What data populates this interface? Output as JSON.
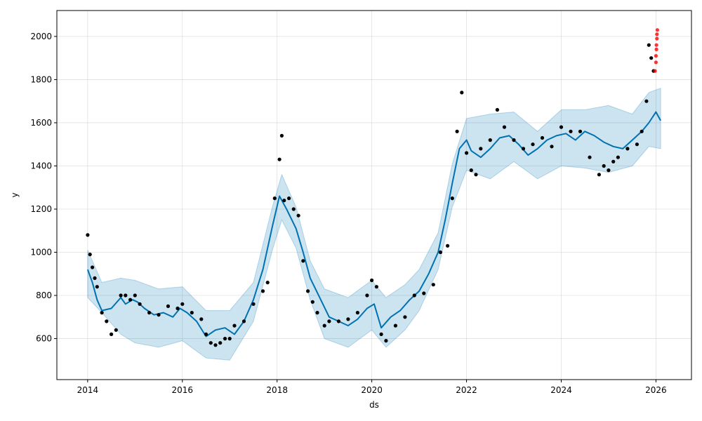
{
  "chart_data": {
    "type": "line",
    "title": "",
    "xlabel": "ds",
    "ylabel": "y",
    "xlim": [
      2013.35,
      2026.75
    ],
    "ylim": [
      410,
      2120
    ],
    "x_ticks": [
      2014,
      2016,
      2018,
      2020,
      2022,
      2024,
      2026
    ],
    "x_tick_labels": [
      "2014",
      "2016",
      "2018",
      "2020",
      "2022",
      "2024",
      "2026"
    ],
    "y_ticks": [
      600,
      800,
      1000,
      1200,
      1400,
      1600,
      1800,
      2000
    ],
    "y_tick_labels": [
      "600",
      "800",
      "1000",
      "1200",
      "1400",
      "1600",
      "1800",
      "2000"
    ],
    "grid": true,
    "colors": {
      "forecast_line": "#0072b2",
      "uncertainty_band": "#0072b2",
      "observed_points": "#000000",
      "holdout_points": "#ff0000"
    },
    "series": [
      {
        "kind": "forecast",
        "x": [
          2014.0,
          2014.1,
          2014.2,
          2014.3,
          2014.5,
          2014.7,
          2014.8,
          2014.95,
          2015.05,
          2015.2,
          2015.4,
          2015.6,
          2015.8,
          2015.95,
          2016.1,
          2016.3,
          2016.5,
          2016.7,
          2016.9,
          2017.1,
          2017.3,
          2017.5,
          2017.7,
          2017.9,
          2018.05,
          2018.2,
          2018.4,
          2018.55,
          2018.7,
          2018.9,
          2019.1,
          2019.3,
          2019.5,
          2019.7,
          2019.9,
          2020.05,
          2020.2,
          2020.4,
          2020.6,
          2020.8,
          2021.0,
          2021.2,
          2021.4,
          2021.55,
          2021.7,
          2021.85,
          2022.0,
          2022.1,
          2022.3,
          2022.5,
          2022.7,
          2022.9,
          2023.1,
          2023.3,
          2023.5,
          2023.7,
          2023.9,
          2024.1,
          2024.3,
          2024.5,
          2024.7,
          2024.9,
          2025.1,
          2025.3,
          2025.5,
          2025.7,
          2025.85,
          2026.0,
          2026.1
        ],
        "y": [
          920,
          860,
          780,
          730,
          740,
          790,
          760,
          780,
          770,
          740,
          710,
          720,
          700,
          740,
          720,
          680,
          610,
          640,
          650,
          620,
          680,
          780,
          920,
          1120,
          1260,
          1200,
          1110,
          1000,
          880,
          790,
          700,
          680,
          660,
          690,
          740,
          760,
          650,
          700,
          730,
          780,
          820,
          900,
          1000,
          1150,
          1320,
          1480,
          1520,
          1470,
          1440,
          1480,
          1530,
          1540,
          1500,
          1450,
          1480,
          1520,
          1540,
          1550,
          1520,
          1560,
          1540,
          1510,
          1490,
          1480,
          1520,
          1560,
          1600,
          1650,
          1610
        ]
      },
      {
        "kind": "uncertainty_upper",
        "x": [
          2014.0,
          2014.3,
          2014.7,
          2015.0,
          2015.5,
          2016.0,
          2016.5,
          2017.0,
          2017.5,
          2017.9,
          2018.1,
          2018.4,
          2018.7,
          2019.0,
          2019.5,
          2020.0,
          2020.3,
          2020.7,
          2021.0,
          2021.4,
          2021.7,
          2022.0,
          2022.5,
          2023.0,
          2023.5,
          2024.0,
          2024.5,
          2025.0,
          2025.5,
          2025.85,
          2026.1
        ],
        "y": [
          1010,
          860,
          880,
          870,
          830,
          840,
          730,
          730,
          860,
          1210,
          1360,
          1210,
          960,
          830,
          790,
          870,
          790,
          850,
          920,
          1090,
          1410,
          1620,
          1640,
          1650,
          1560,
          1660,
          1660,
          1680,
          1640,
          1740,
          1760
        ]
      },
      {
        "kind": "uncertainty_lower",
        "x": [
          2014.0,
          2014.3,
          2014.7,
          2015.0,
          2015.5,
          2016.0,
          2016.5,
          2017.0,
          2017.5,
          2017.9,
          2018.1,
          2018.4,
          2018.7,
          2019.0,
          2019.5,
          2020.0,
          2020.3,
          2020.7,
          2021.0,
          2021.4,
          2021.7,
          2022.0,
          2022.5,
          2023.0,
          2023.5,
          2024.0,
          2024.5,
          2025.0,
          2025.5,
          2025.85,
          2026.1
        ],
        "y": [
          790,
          720,
          620,
          580,
          560,
          590,
          510,
          500,
          680,
          1010,
          1150,
          1020,
          780,
          600,
          560,
          640,
          560,
          640,
          730,
          920,
          1210,
          1380,
          1340,
          1420,
          1340,
          1400,
          1390,
          1370,
          1400,
          1490,
          1480
        ]
      },
      {
        "kind": "observed",
        "x": [
          2014.0,
          2014.05,
          2014.1,
          2014.15,
          2014.2,
          2014.3,
          2014.4,
          2014.5,
          2014.6,
          2014.7,
          2014.8,
          2014.9,
          2015.0,
          2015.1,
          2015.3,
          2015.5,
          2015.7,
          2015.9,
          2016.0,
          2016.2,
          2016.4,
          2016.5,
          2016.6,
          2016.7,
          2016.8,
          2016.9,
          2017.0,
          2017.1,
          2017.3,
          2017.5,
          2017.7,
          2017.8,
          2017.95,
          2018.05,
          2018.1,
          2018.15,
          2018.25,
          2018.35,
          2018.45,
          2018.55,
          2018.65,
          2018.75,
          2018.85,
          2019.0,
          2019.1,
          2019.3,
          2019.5,
          2019.7,
          2019.9,
          2020.0,
          2020.1,
          2020.2,
          2020.3,
          2020.5,
          2020.7,
          2020.9,
          2021.1,
          2021.3,
          2021.45,
          2021.6,
          2021.7,
          2021.8,
          2021.9,
          2022.0,
          2022.1,
          2022.2,
          2022.3,
          2022.5,
          2022.65,
          2022.8,
          2023.0,
          2023.2,
          2023.4,
          2023.6,
          2023.8,
          2024.0,
          2024.2,
          2024.4,
          2024.6,
          2024.8,
          2024.9,
          2025.0,
          2025.1,
          2025.2,
          2025.4,
          2025.6,
          2025.7,
          2025.8,
          2025.85,
          2025.9,
          2025.95
        ],
        "y": [
          1080,
          990,
          930,
          880,
          840,
          720,
          680,
          620,
          640,
          800,
          800,
          780,
          800,
          760,
          720,
          710,
          750,
          740,
          760,
          720,
          690,
          620,
          580,
          570,
          580,
          600,
          600,
          660,
          680,
          760,
          820,
          860,
          1250,
          1430,
          1540,
          1240,
          1250,
          1200,
          1170,
          960,
          820,
          770,
          720,
          660,
          680,
          680,
          690,
          720,
          800,
          870,
          840,
          620,
          590,
          660,
          700,
          800,
          810,
          850,
          1000,
          1030,
          1250,
          1560,
          1740,
          1460,
          1380,
          1360,
          1480,
          1520,
          1660,
          1580,
          1520,
          1480,
          1500,
          1530,
          1490,
          1580,
          1560,
          1560,
          1440,
          1360,
          1400,
          1380,
          1420,
          1440,
          1480,
          1500,
          1560,
          1700,
          1960,
          1900,
          1840
        ]
      },
      {
        "kind": "holdout",
        "x": [
          2025.98,
          2026.0,
          2026.0,
          2026.01,
          2026.01,
          2026.02,
          2026.02,
          2026.03
        ],
        "y": [
          1840,
          1880,
          1910,
          1940,
          1960,
          1990,
          2010,
          2030
        ]
      }
    ]
  }
}
